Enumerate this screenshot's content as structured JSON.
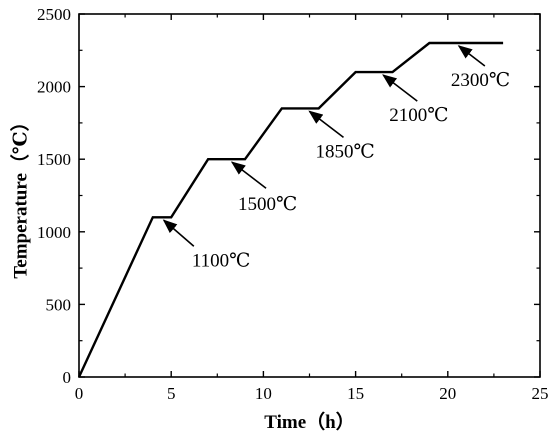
{
  "chart_data": {
    "type": "line",
    "xlabel": "Time（h）",
    "ylabel": "Temperature（℃）",
    "xlim": [
      0,
      25
    ],
    "ylim": [
      0,
      2500
    ],
    "xticks": [
      0,
      5,
      10,
      15,
      20,
      25
    ],
    "yticks": [
      0,
      500,
      1000,
      1500,
      2000,
      2500
    ],
    "grid": false,
    "series": [
      {
        "x": [
          0,
          4,
          5,
          7,
          9,
          11,
          13,
          15,
          17,
          19,
          23
        ],
        "y": [
          0,
          1100,
          1100,
          1500,
          1500,
          1850,
          1850,
          2100,
          2100,
          2300,
          2300
        ],
        "color": "#000000"
      }
    ],
    "annotations": [
      {
        "text": "1100℃",
        "point": [
          4.6,
          1100
        ]
      },
      {
        "text": "1500℃",
        "point": [
          8.3,
          1500
        ]
      },
      {
        "text": "1850℃",
        "point": [
          12.5,
          1850
        ]
      },
      {
        "text": "2100℃",
        "point": [
          16.5,
          2100
        ]
      },
      {
        "text": "2300℃",
        "point": [
          20.6,
          2300
        ]
      }
    ]
  }
}
